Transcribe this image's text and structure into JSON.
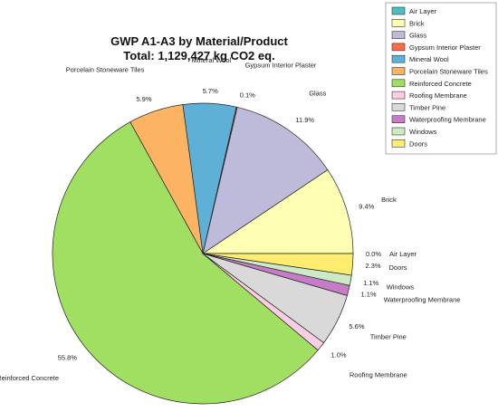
{
  "chart_data": {
    "type": "pie",
    "title": "GWP A1-A3 by Material/Product",
    "subtitle": "Total: 1,129,427  kg CO2 eq.",
    "start_angle_deg": 0,
    "direction": "counterclockwise",
    "legend_placement": "top-right",
    "slices": [
      {
        "name": "Air Layer",
        "value": 0.0,
        "label": "0.0%",
        "color": "#4bbfbf"
      },
      {
        "name": "Brick",
        "value": 9.4,
        "label": "9.4%",
        "color": "#ffffb3"
      },
      {
        "name": "Glass",
        "value": 11.9,
        "label": "11.9%",
        "color": "#bebada"
      },
      {
        "name": "Gypsum Interior Plaster",
        "value": 0.1,
        "label": "0.1%",
        "color": "#fb6a4a"
      },
      {
        "name": "Mineral Wool",
        "value": 5.7,
        "label": "5.7%",
        "color": "#5fb0d6"
      },
      {
        "name": "Porcelain Stoneware Tiles",
        "value": 5.9,
        "label": "5.9%",
        "color": "#fdb462"
      },
      {
        "name": "Reinforced Concrete",
        "value": 55.8,
        "label": "55.8%",
        "color": "#a1df63"
      },
      {
        "name": "Roofing Membrane",
        "value": 1.0,
        "label": "1.0%",
        "color": "#fccde5"
      },
      {
        "name": "Timber Pine",
        "value": 5.6,
        "label": "5.6%",
        "color": "#d9d9d9"
      },
      {
        "name": "Waterproofing Membrane",
        "value": 1.1,
        "label": "1.1%",
        "color": "#c77cc7"
      },
      {
        "name": "Windows",
        "value": 1.1,
        "label": "1.1%",
        "color": "#ccebc5"
      },
      {
        "name": "Doors",
        "value": 2.3,
        "label": "2.3%",
        "color": "#ffed6f"
      }
    ]
  }
}
